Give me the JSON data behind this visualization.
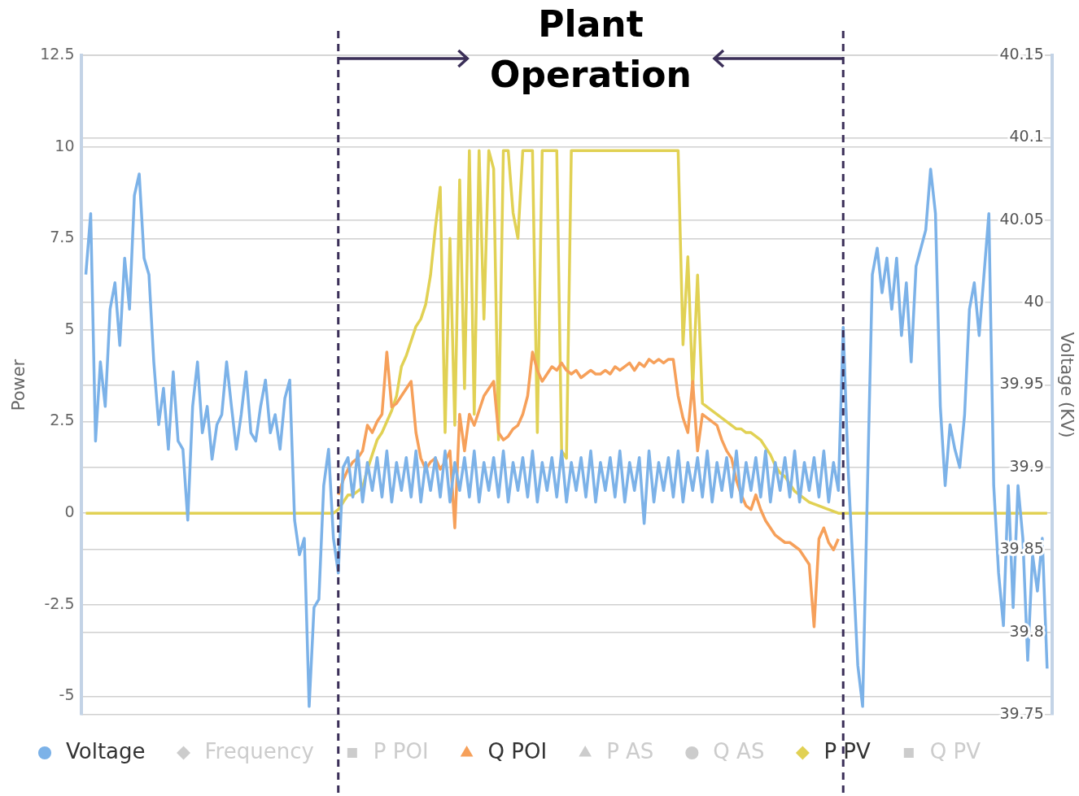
{
  "chart_data": {
    "type": "line",
    "ylabel": "Power",
    "y2label": "Voltage (KV)",
    "annotations": [
      "Plant Operation"
    ],
    "categories": [
      null,
      null,
      null,
      null,
      null,
      null,
      null,
      null,
      null,
      null,
      null,
      null,
      null,
      null,
      null,
      null,
      null,
      null,
      null,
      null,
      null,
      null,
      null,
      null,
      null,
      null,
      null,
      null,
      null,
      null,
      null,
      null,
      null,
      null,
      null,
      null,
      null,
      null,
      null,
      null,
      null,
      null,
      null,
      null,
      null,
      null,
      null,
      null,
      null,
      null,
      null,
      null,
      null,
      null,
      null,
      null,
      null,
      null,
      null,
      null,
      null,
      null,
      null,
      null,
      null,
      null,
      null,
      null,
      null,
      null,
      null,
      null,
      null,
      null,
      null,
      null,
      null,
      null,
      null,
      null,
      null,
      null,
      null,
      null,
      null,
      null,
      null,
      null,
      null,
      null,
      null,
      null,
      null,
      null,
      null,
      null,
      null,
      null,
      null,
      null,
      null,
      null,
      null,
      null,
      null,
      null,
      null,
      null,
      null,
      null,
      null,
      null,
      null,
      null,
      null,
      null,
      null,
      null,
      null,
      null,
      null,
      null,
      null,
      null,
      null,
      null,
      null,
      null,
      null,
      null,
      null,
      null,
      null,
      null,
      null,
      null,
      null,
      null,
      null,
      null,
      null,
      null,
      null,
      null,
      null,
      null,
      null,
      null,
      null,
      null,
      null,
      null,
      null,
      null,
      null,
      null,
      null,
      null,
      null,
      null,
      null,
      null,
      null,
      null,
      null,
      null,
      null,
      null,
      null,
      null,
      null,
      null,
      null,
      null,
      null,
      null,
      null,
      null,
      null,
      null,
      null,
      null,
      null,
      null,
      null,
      null,
      null,
      null,
      null,
      null,
      null,
      null,
      null,
      null,
      null,
      null,
      null,
      null,
      null,
      null,
      null
    ],
    "ylim": [
      -5.5,
      12.5
    ],
    "yticks": [
      -5,
      -2.5,
      0,
      2.5,
      5,
      7.5,
      10,
      12.5
    ],
    "y2lim": [
      39.75,
      40.15
    ],
    "y2ticks": [
      39.75,
      39.8,
      39.85,
      39.9,
      39.95,
      40,
      40.05,
      40.1,
      40.15
    ],
    "tick_labels": "y",
    "grid": true,
    "legend": "bottom",
    "series": [
      {
        "name": "Voltage",
        "color": "#7cb2e8",
        "axis": "y2",
        "values": [
          null,
          40.017,
          40.054,
          39.916,
          39.964,
          39.937,
          39.996,
          40.012,
          39.974,
          40.027,
          39.996,
          40.065,
          40.078,
          40.027,
          40.017,
          39.964,
          39.926,
          39.948,
          39.911,
          39.958,
          39.916,
          39.911,
          39.868,
          39.937,
          39.964,
          39.921,
          39.937,
          39.905,
          39.926,
          39.932,
          39.964,
          39.937,
          39.911,
          39.932,
          39.958,
          39.921,
          39.916,
          39.937,
          39.953,
          39.921,
          39.932,
          39.911,
          39.942,
          39.953,
          39.868,
          39.847,
          39.857,
          39.755,
          39.815,
          39.82,
          39.889,
          39.911,
          39.857,
          39.836,
          39.9,
          39.906,
          39.882,
          39.91,
          39.879,
          39.903,
          39.886,
          39.906,
          39.882,
          39.91,
          39.879,
          39.903,
          39.886,
          39.906,
          39.882,
          39.91,
          39.879,
          39.903,
          39.886,
          39.906,
          39.882,
          39.91,
          39.879,
          39.903,
          39.886,
          39.906,
          39.882,
          39.91,
          39.879,
          39.903,
          39.886,
          39.906,
          39.882,
          39.91,
          39.879,
          39.903,
          39.886,
          39.906,
          39.882,
          39.91,
          39.879,
          39.903,
          39.886,
          39.906,
          39.882,
          39.91,
          39.879,
          39.903,
          39.886,
          39.906,
          39.882,
          39.91,
          39.879,
          39.903,
          39.886,
          39.906,
          39.882,
          39.91,
          39.879,
          39.903,
          39.886,
          39.906,
          39.866,
          39.91,
          39.879,
          39.903,
          39.886,
          39.906,
          39.882,
          39.91,
          39.879,
          39.903,
          39.886,
          39.906,
          39.882,
          39.91,
          39.879,
          39.903,
          39.886,
          39.906,
          39.882,
          39.91,
          39.879,
          39.903,
          39.886,
          39.906,
          39.882,
          39.91,
          39.879,
          39.903,
          39.886,
          39.906,
          39.882,
          39.91,
          39.879,
          39.903,
          39.886,
          39.906,
          39.882,
          39.91,
          39.879,
          39.903,
          39.886,
          39.985,
          39.9,
          39.841,
          39.78,
          39.755,
          39.889,
          40.017,
          40.033,
          40.006,
          40.027,
          39.996,
          40.027,
          39.98,
          40.012,
          39.964,
          40.022,
          40.033,
          40.044,
          40.081,
          40.054,
          39.937,
          39.889,
          39.926,
          39.911,
          39.9,
          39.932,
          39.996,
          40.012,
          39.98,
          40.017,
          40.054,
          39.889,
          39.836,
          39.804,
          39.889,
          39.815,
          39.889,
          39.857,
          39.783,
          39.847,
          39.825,
          39.857,
          39.778,
          null
        ]
      },
      {
        "name": "Frequency",
        "color": "#cccccc",
        "values": [
          null,
          null,
          null,
          null,
          null,
          null,
          null,
          null,
          null,
          null,
          null,
          null,
          null,
          null,
          null,
          null,
          null,
          null,
          null,
          null,
          null,
          null,
          null,
          null,
          null,
          null,
          null,
          null,
          null,
          null,
          null,
          null,
          null,
          null,
          null,
          null,
          null,
          null,
          null,
          null,
          null,
          null,
          null,
          null,
          null,
          null,
          null,
          null,
          null,
          null,
          null,
          null,
          null,
          null,
          null,
          null,
          null,
          null,
          null,
          null,
          null,
          null,
          null,
          null,
          null,
          null,
          null,
          null,
          null,
          null,
          null,
          null,
          null,
          null,
          null,
          null,
          null,
          null,
          null,
          null,
          null,
          null,
          null,
          null,
          null,
          null,
          null,
          null,
          null,
          null,
          null,
          null,
          null,
          null,
          null,
          null,
          null,
          null,
          null,
          null,
          null,
          null,
          null,
          null,
          null,
          null,
          null,
          null,
          null,
          null,
          null,
          null,
          null,
          null,
          null,
          null,
          null,
          null,
          null,
          null,
          null,
          null,
          null,
          null,
          null,
          null,
          null,
          null,
          null,
          null,
          null,
          null,
          null,
          null,
          null,
          null,
          null,
          null,
          null,
          null,
          null,
          null,
          null,
          null,
          null,
          null,
          null,
          null,
          null,
          null,
          null,
          null,
          null,
          null,
          null,
          null,
          null,
          null,
          null,
          null,
          null,
          null,
          null,
          null,
          null,
          null,
          null,
          null,
          null,
          null,
          null,
          null,
          null,
          null,
          null,
          null,
          null,
          null,
          null,
          null,
          null,
          null,
          null,
          null,
          null,
          null,
          null,
          null,
          null,
          null,
          null,
          null,
          null,
          null,
          null,
          null,
          null,
          null,
          null,
          null,
          null
        ]
      },
      {
        "name": "P POI",
        "color": "#cccccc",
        "values": [
          null,
          null,
          null,
          null,
          null,
          null,
          null,
          null,
          null,
          null,
          null,
          null,
          null,
          null,
          null,
          null,
          null,
          null,
          null,
          null,
          null,
          null,
          null,
          null,
          null,
          null,
          null,
          null,
          null,
          null,
          null,
          null,
          null,
          null,
          null,
          null,
          null,
          null,
          null,
          null,
          null,
          null,
          null,
          null,
          null,
          null,
          null,
          null,
          null,
          null,
          null,
          null,
          null,
          null,
          null,
          null,
          null,
          null,
          null,
          null,
          null,
          null,
          null,
          null,
          null,
          null,
          null,
          null,
          null,
          null,
          null,
          null,
          null,
          null,
          null,
          null,
          null,
          null,
          null,
          null,
          null,
          null,
          null,
          null,
          null,
          null,
          null,
          null,
          null,
          null,
          null,
          null,
          null,
          null,
          null,
          null,
          null,
          null,
          null,
          null,
          null,
          null,
          null,
          null,
          null,
          null,
          null,
          null,
          null,
          null,
          null,
          null,
          null,
          null,
          null,
          null,
          null,
          null,
          null,
          null,
          null,
          null,
          null,
          null,
          null,
          null,
          null,
          null,
          null,
          null,
          null,
          null,
          null,
          null,
          null,
          null,
          null,
          null,
          null,
          null,
          null,
          null,
          null,
          null,
          null,
          null,
          null,
          null,
          null,
          null,
          null,
          null,
          null,
          null,
          null,
          null,
          null,
          null,
          null,
          null,
          null,
          null,
          null,
          null,
          null,
          null,
          null,
          null,
          null,
          null,
          null,
          null,
          null,
          null,
          null,
          null,
          null,
          null,
          null,
          null,
          null,
          null,
          null,
          null,
          null,
          null,
          null,
          null,
          null,
          null,
          null,
          null,
          null,
          null,
          null,
          null,
          null,
          null,
          null,
          null,
          null
        ]
      },
      {
        "name": "Q POI",
        "color": "#f6a05a",
        "values": [
          null,
          null,
          null,
          null,
          null,
          null,
          null,
          null,
          null,
          null,
          null,
          null,
          null,
          null,
          null,
          null,
          null,
          null,
          null,
          null,
          null,
          null,
          null,
          null,
          null,
          null,
          null,
          null,
          null,
          null,
          null,
          null,
          null,
          null,
          null,
          null,
          null,
          null,
          null,
          null,
          null,
          null,
          null,
          null,
          null,
          null,
          null,
          null,
          null,
          null,
          null,
          null,
          null,
          0.5,
          0.9,
          1.2,
          1.4,
          1.5,
          1.7,
          2.4,
          2.2,
          2.5,
          2.7,
          4.4,
          2.9,
          3.0,
          3.2,
          3.4,
          3.6,
          2.2,
          1.5,
          1.2,
          1.4,
          1.5,
          1.2,
          1.4,
          1.7,
          -0.4,
          2.7,
          1.7,
          2.7,
          2.4,
          2.8,
          3.2,
          3.4,
          3.6,
          2.2,
          2.0,
          2.1,
          2.3,
          2.4,
          2.7,
          3.2,
          4.4,
          3.9,
          3.6,
          3.8,
          4.0,
          3.9,
          4.1,
          3.9,
          3.8,
          3.9,
          3.7,
          3.8,
          3.9,
          3.8,
          3.8,
          3.9,
          3.8,
          4.0,
          3.9,
          4.0,
          4.1,
          3.9,
          4.1,
          4.0,
          4.2,
          4.1,
          4.2,
          4.1,
          4.2,
          4.2,
          3.2,
          2.6,
          2.2,
          3.6,
          1.7,
          2.7,
          2.6,
          2.5,
          2.4,
          2.0,
          1.7,
          1.5,
          0.9,
          0.5,
          0.2,
          0.1,
          0.5,
          0.1,
          -0.2,
          -0.4,
          -0.6,
          -0.7,
          -0.8,
          -0.8,
          -0.9,
          -1.0,
          -1.2,
          -1.4,
          -3.1,
          -0.7,
          -0.4,
          -0.8,
          -1.0,
          -0.7,
          null,
          null,
          null,
          null,
          null,
          null,
          null,
          null,
          null,
          null,
          null,
          null,
          null,
          null,
          null,
          null,
          null,
          null,
          null,
          null,
          null,
          null,
          null,
          null,
          null,
          null,
          null,
          null,
          null,
          null,
          null,
          null,
          null,
          null,
          null,
          null,
          null,
          null,
          null,
          null,
          null,
          null,
          null,
          null
        ]
      },
      {
        "name": "P AS",
        "color": "#cccccc",
        "values": [
          null,
          null,
          null,
          null,
          null,
          null,
          null,
          null,
          null,
          null,
          null,
          null,
          null,
          null,
          null,
          null,
          null,
          null,
          null,
          null,
          null,
          null,
          null,
          null,
          null,
          null,
          null,
          null,
          null,
          null,
          null,
          null,
          null,
          null,
          null,
          null,
          null,
          null,
          null,
          null,
          null,
          null,
          null,
          null,
          null,
          null,
          null,
          null,
          null,
          null,
          null,
          null,
          null,
          null,
          null,
          null,
          null,
          null,
          null,
          null,
          null,
          null,
          null,
          null,
          null,
          null,
          null,
          null,
          null,
          null,
          null,
          null,
          null,
          null,
          null,
          null,
          null,
          null,
          null,
          null,
          null,
          null,
          null,
          null,
          null,
          null,
          null,
          null,
          null,
          null,
          null,
          null,
          null,
          null,
          null,
          null,
          null,
          null,
          null,
          null,
          null,
          null,
          null,
          null,
          null,
          null,
          null,
          null,
          null,
          null,
          null,
          null,
          null,
          null,
          null,
          null,
          null,
          null,
          null,
          null,
          null,
          null,
          null,
          null,
          null,
          null,
          null,
          null,
          null,
          null,
          null,
          null,
          null,
          null,
          null,
          null,
          null,
          null,
          null,
          null,
          null,
          null,
          null,
          null,
          null,
          null,
          null,
          null,
          null,
          null,
          null,
          null,
          null,
          null,
          null,
          null,
          null,
          null,
          null,
          null,
          null,
          null,
          null,
          null,
          null,
          null,
          null,
          null,
          null,
          null,
          null,
          null,
          null,
          null,
          null,
          null,
          null,
          null,
          null,
          null,
          null,
          null,
          null,
          null,
          null,
          null,
          null,
          null,
          null,
          null,
          null,
          null,
          null,
          null,
          null,
          null,
          null,
          null,
          null,
          null,
          null
        ]
      },
      {
        "name": "Q AS",
        "color": "#cccccc",
        "values": [
          null,
          null,
          null,
          null,
          null,
          null,
          null,
          null,
          null,
          null,
          null,
          null,
          null,
          null,
          null,
          null,
          null,
          null,
          null,
          null,
          null,
          null,
          null,
          null,
          null,
          null,
          null,
          null,
          null,
          null,
          null,
          null,
          null,
          null,
          null,
          null,
          null,
          null,
          null,
          null,
          null,
          null,
          null,
          null,
          null,
          null,
          null,
          null,
          null,
          null,
          null,
          null,
          null,
          null,
          null,
          null,
          null,
          null,
          null,
          null,
          null,
          null,
          null,
          null,
          null,
          null,
          null,
          null,
          null,
          null,
          null,
          null,
          null,
          null,
          null,
          null,
          null,
          null,
          null,
          null,
          null,
          null,
          null,
          null,
          null,
          null,
          null,
          null,
          null,
          null,
          null,
          null,
          null,
          null,
          null,
          null,
          null,
          null,
          null,
          null,
          null,
          null,
          null,
          null,
          null,
          null,
          null,
          null,
          null,
          null,
          null,
          null,
          null,
          null,
          null,
          null,
          null,
          null,
          null,
          null,
          null,
          null,
          null,
          null,
          null,
          null,
          null,
          null,
          null,
          null,
          null,
          null,
          null,
          null,
          null,
          null,
          null,
          null,
          null,
          null,
          null,
          null,
          null,
          null,
          null,
          null,
          null,
          null,
          null,
          null,
          null,
          null,
          null,
          null,
          null,
          null,
          null,
          null,
          null,
          null,
          null,
          null,
          null,
          null,
          null,
          null,
          null,
          null,
          null,
          null,
          null,
          null,
          null,
          null,
          null,
          null,
          null,
          null,
          null,
          null,
          null,
          null,
          null,
          null,
          null,
          null,
          null,
          null,
          null,
          null,
          null,
          null,
          null,
          null,
          null,
          null,
          null,
          null,
          null,
          null,
          null
        ]
      },
      {
        "name": "P PV",
        "color": "#e1d154",
        "values": [
          null,
          0,
          0,
          0,
          0,
          0,
          0,
          0,
          0,
          0,
          0,
          0,
          0,
          0,
          0,
          0,
          0,
          0,
          0,
          0,
          0,
          0,
          0,
          0,
          0,
          0,
          0,
          0,
          0,
          0,
          0,
          0,
          0,
          0,
          0,
          0,
          0,
          0,
          0,
          0,
          0,
          0,
          0,
          0,
          0,
          0,
          0,
          0,
          0,
          0,
          0,
          0,
          0,
          0.1,
          0.3,
          0.5,
          0.5,
          0.6,
          0.7,
          1.2,
          1.6,
          2.0,
          2.2,
          2.5,
          2.8,
          3.2,
          4.0,
          4.3,
          4.7,
          5.1,
          5.3,
          5.7,
          6.5,
          7.8,
          8.9,
          2.2,
          7.5,
          2.4,
          9.1,
          3.4,
          9.9,
          2.7,
          9.9,
          5.3,
          9.9,
          9.4,
          2.0,
          9.9,
          9.9,
          8.2,
          7.5,
          9.9,
          9.9,
          9.9,
          2.2,
          9.9,
          9.9,
          9.9,
          9.9,
          1.7,
          1.5,
          9.9,
          9.9,
          9.9,
          9.9,
          9.9,
          9.9,
          9.9,
          9.9,
          9.9,
          9.9,
          9.9,
          9.9,
          9.9,
          9.9,
          9.9,
          9.9,
          9.9,
          9.9,
          9.9,
          9.9,
          9.9,
          9.9,
          9.9,
          4.6,
          7.0,
          3.4,
          6.5,
          3.0,
          2.9,
          2.8,
          2.7,
          2.6,
          2.5,
          2.4,
          2.3,
          2.3,
          2.2,
          2.2,
          2.1,
          2.0,
          1.8,
          1.6,
          1.3,
          1.1,
          1.0,
          0.8,
          0.6,
          0.5,
          0.4,
          0.3,
          0.25,
          0.2,
          0.15,
          0.1,
          0.05,
          0,
          0,
          0,
          0,
          0,
          0,
          0,
          0,
          0,
          0,
          0,
          0,
          0,
          0,
          0,
          0,
          0,
          0,
          0,
          0,
          0,
          0,
          0,
          0,
          0,
          0,
          0,
          0,
          0,
          0,
          0,
          0,
          0,
          0,
          0,
          0,
          0,
          0,
          0,
          0,
          0,
          0,
          0,
          0,
          null
        ]
      },
      {
        "name": "Q PV",
        "color": "#cccccc",
        "values": [
          null,
          null,
          null,
          null,
          null,
          null,
          null,
          null,
          null,
          null,
          null,
          null,
          null,
          null,
          null,
          null,
          null,
          null,
          null,
          null,
          null,
          null,
          null,
          null,
          null,
          null,
          null,
          null,
          null,
          null,
          null,
          null,
          null,
          null,
          null,
          null,
          null,
          null,
          null,
          null,
          null,
          null,
          null,
          null,
          null,
          null,
          null,
          null,
          null,
          null,
          null,
          null,
          null,
          null,
          null,
          null,
          null,
          null,
          null,
          null,
          null,
          null,
          null,
          null,
          null,
          null,
          null,
          null,
          null,
          null,
          null,
          null,
          null,
          null,
          null,
          null,
          null,
          null,
          null,
          null,
          null,
          null,
          null,
          null,
          null,
          null,
          null,
          null,
          null,
          null,
          null,
          null,
          null,
          null,
          null,
          null,
          null,
          null,
          null,
          null,
          null,
          null,
          null,
          null,
          null,
          null,
          null,
          null,
          null,
          null,
          null,
          null,
          null,
          null,
          null,
          null,
          null,
          null,
          null,
          null,
          null,
          null,
          null,
          null,
          null,
          null,
          null,
          null,
          null,
          null,
          null,
          null,
          null,
          null,
          null,
          null,
          null,
          null,
          null,
          null,
          null,
          null,
          null,
          null,
          null,
          null,
          null,
          null,
          null,
          null,
          null,
          null,
          null,
          null,
          null,
          null,
          null,
          null,
          null,
          null,
          null,
          null,
          null,
          null,
          null,
          null,
          null,
          null,
          null,
          null,
          null,
          null,
          null,
          null,
          null,
          null,
          null,
          null,
          null,
          null,
          null,
          null,
          null,
          null,
          null,
          null,
          null,
          null,
          null,
          null,
          null,
          null,
          null,
          null,
          null,
          null,
          null,
          null,
          null,
          null,
          null
        ]
      }
    ]
  }
}
